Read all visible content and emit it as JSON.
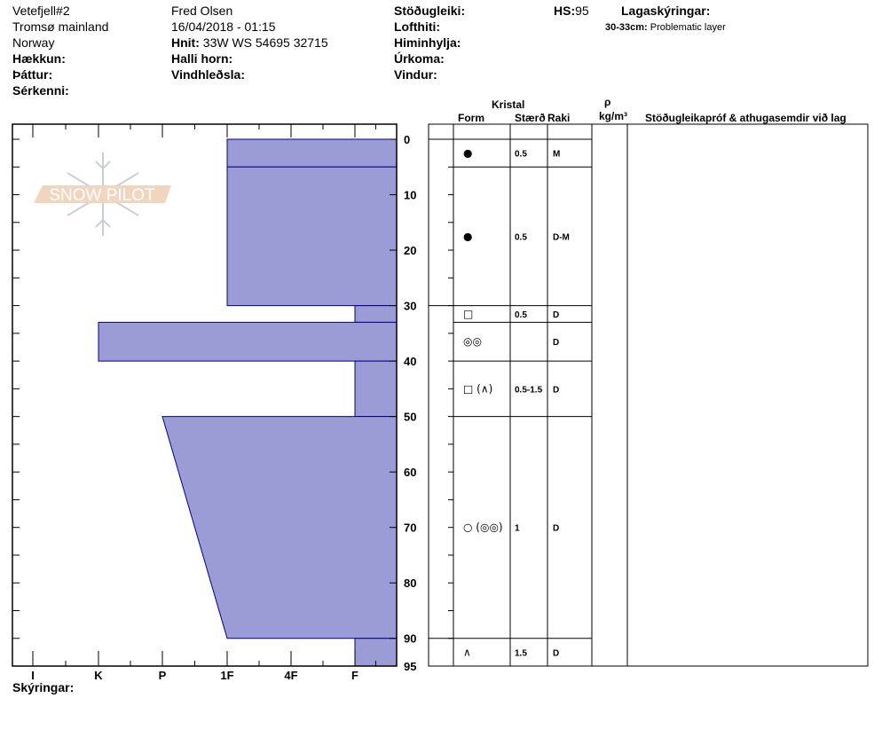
{
  "header": {
    "col1": [
      "Vetefjell#2",
      "Tromsø mainland",
      "Norway"
    ],
    "name": "Fred  Olsen",
    "datetime": "16/04/2018 - 01:15",
    "coords_label": "Hnit:",
    "coords_value": "33W WS 54695 32715",
    "labels_left": [
      "Hækkun:",
      "Þáttur:",
      "Sérkenni:"
    ],
    "labels_mid": [
      "Halli horn:",
      "Vindhleðsla:"
    ],
    "labels_right": [
      "Stöðugleiki:",
      "Lofthiti:",
      "Himinhylja:",
      "Úrkoma:",
      "Vindur:"
    ],
    "hs_label": "HS:",
    "hs_value": "95",
    "layer_notes_title": "Lagaskýringar:",
    "layer_note_range": "30-33cm:",
    "layer_note_text": "Problematic layer"
  },
  "table_headers": {
    "kristal": "Kristal",
    "form": "Form",
    "size": "Stærð",
    "moisture": "Raki",
    "rho": "ρ",
    "density_unit": "kg/m³",
    "comments": "Stöðugleikapróf & athugasemdir við lag"
  },
  "footer": {
    "legend_label": "Skýringar:"
  },
  "logo_text": "SNOW PILOT",
  "colors": {
    "fill": "#9b9bd5",
    "stroke": "#00008b"
  },
  "chart_data": {
    "type": "area",
    "xlabel": "",
    "ylabel": "",
    "x_tick_labels": [
      "I",
      "K",
      "P",
      "1F",
      "4F",
      "F"
    ],
    "y_ticks": [
      0,
      10,
      20,
      30,
      40,
      50,
      60,
      70,
      80,
      90,
      95
    ],
    "ylim": [
      0,
      95
    ],
    "layers": [
      {
        "top": 0,
        "bottom": 5,
        "hardness_top": "1F",
        "hardness_bottom": "1F",
        "form": "●",
        "size": "0.5",
        "moisture": "M"
      },
      {
        "top": 5,
        "bottom": 30,
        "hardness_top": "1F",
        "hardness_bottom": "1F",
        "form": "●",
        "size": "0.5",
        "moisture": "D-M"
      },
      {
        "top": 30,
        "bottom": 33,
        "hardness_top": "F",
        "hardness_bottom": "F",
        "form": "□",
        "size": "0.5",
        "moisture": "D"
      },
      {
        "top": 33,
        "bottom": 40,
        "hardness_top": "K",
        "hardness_bottom": "K",
        "form": "◎◎",
        "size": "",
        "moisture": "D"
      },
      {
        "top": 40,
        "bottom": 50,
        "hardness_top": "F",
        "hardness_bottom": "F",
        "form": "□ (∧)",
        "size": "0.5-1.5",
        "moisture": "D"
      },
      {
        "top": 50,
        "bottom": 90,
        "hardness_top": "P",
        "hardness_bottom": "1F",
        "form": "○ (◎◎)",
        "size": "1",
        "moisture": "D"
      },
      {
        "top": 90,
        "bottom": 95,
        "hardness_top": "F",
        "hardness_bottom": "F",
        "form": "∧",
        "size": "1.5",
        "moisture": "D"
      }
    ]
  }
}
